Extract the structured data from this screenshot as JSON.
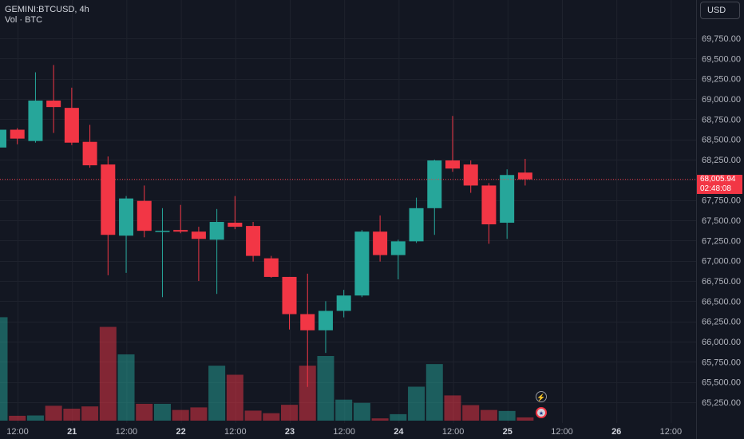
{
  "legend": {
    "symbol": "GEMINI:BTCUSD, 4h",
    "volume": "Vol · BTC"
  },
  "price_scale": {
    "currency": "USD"
  },
  "last_price": {
    "value": "68,005.94",
    "countdown": "02:48:08"
  },
  "events": {
    "flash_icon": "lightning-icon",
    "flag_icon": "us-flag-icon"
  },
  "colors": {
    "up": "#26a69a",
    "down": "#f23645",
    "background": "#131722",
    "grid": "#1e222d",
    "text": "#b2b5be"
  },
  "chart_data": {
    "type": "candlestick",
    "timeframe": "4h",
    "x_tick_labels": [
      "12:00",
      "21",
      "12:00",
      "22",
      "12:00",
      "23",
      "12:00",
      "24",
      "12:00",
      "25",
      "12:00",
      "26",
      "12:00"
    ],
    "y_tick_labels": [
      "69,750.00",
      "69,500.00",
      "69,250.00",
      "69,000.00",
      "68,750.00",
      "68,500.00",
      "68,250.00",
      "68,000.00",
      "67,750.00",
      "67,500.00",
      "67,250.00",
      "67,000.00",
      "66,750.00",
      "66,500.00",
      "66,250.00",
      "66,000.00",
      "65,750.00",
      "65,500.00",
      "65,250.00"
    ],
    "ylim": [
      65100,
      69930
    ],
    "candles": [
      {
        "o": 68400,
        "h": 68650,
        "l": 68200,
        "c": 68620
      },
      {
        "o": 68620,
        "h": 68640,
        "l": 68440,
        "c": 68510
      },
      {
        "o": 68480,
        "h": 69330,
        "l": 68460,
        "c": 68980
      },
      {
        "o": 68980,
        "h": 69420,
        "l": 68580,
        "c": 68900
      },
      {
        "o": 68890,
        "h": 69140,
        "l": 68430,
        "c": 68460
      },
      {
        "o": 68470,
        "h": 68680,
        "l": 68150,
        "c": 68180
      },
      {
        "o": 68190,
        "h": 68290,
        "l": 66820,
        "c": 67320
      },
      {
        "o": 67310,
        "h": 67800,
        "l": 66850,
        "c": 67770
      },
      {
        "o": 67740,
        "h": 67930,
        "l": 67290,
        "c": 67370
      },
      {
        "o": 67370,
        "h": 67650,
        "l": 66550,
        "c": 67370
      },
      {
        "o": 67380,
        "h": 67690,
        "l": 67340,
        "c": 67360
      },
      {
        "o": 67360,
        "h": 67420,
        "l": 66750,
        "c": 67270
      },
      {
        "o": 67260,
        "h": 67640,
        "l": 66590,
        "c": 67480
      },
      {
        "o": 67470,
        "h": 67800,
        "l": 67390,
        "c": 67420
      },
      {
        "o": 67430,
        "h": 67480,
        "l": 66990,
        "c": 67060
      },
      {
        "o": 67030,
        "h": 67060,
        "l": 66790,
        "c": 66800
      },
      {
        "o": 66800,
        "h": 66800,
        "l": 66150,
        "c": 66340
      },
      {
        "o": 66340,
        "h": 66840,
        "l": 65440,
        "c": 66140
      },
      {
        "o": 66140,
        "h": 66500,
        "l": 65860,
        "c": 66380
      },
      {
        "o": 66380,
        "h": 66640,
        "l": 66300,
        "c": 66570
      },
      {
        "o": 66570,
        "h": 67380,
        "l": 66550,
        "c": 67360
      },
      {
        "o": 67360,
        "h": 67560,
        "l": 66990,
        "c": 67070
      },
      {
        "o": 67070,
        "h": 67260,
        "l": 66770,
        "c": 67240
      },
      {
        "o": 67240,
        "h": 67780,
        "l": 67220,
        "c": 67650
      },
      {
        "o": 67650,
        "h": 68250,
        "l": 67320,
        "c": 68240
      },
      {
        "o": 68240,
        "h": 68790,
        "l": 68100,
        "c": 68140
      },
      {
        "o": 68190,
        "h": 68240,
        "l": 67840,
        "c": 67930
      },
      {
        "o": 67930,
        "h": 67960,
        "l": 67210,
        "c": 67450
      },
      {
        "o": 67470,
        "h": 68130,
        "l": 67270,
        "c": 68060
      },
      {
        "o": 68090,
        "h": 68260,
        "l": 67930,
        "c": 68006
      }
    ],
    "volume": [
      32,
      1.5,
      1.6,
      4.6,
      3.7,
      4.4,
      29,
      20.5,
      5.2,
      5.2,
      3.3,
      4.1,
      17,
      14.2,
      3.1,
      2.3,
      4.9,
      17,
      20,
      6.5,
      5.5,
      0.7,
      2,
      10.5,
      17.5,
      7.8,
      4.8,
      3.3,
      3,
      1
    ]
  }
}
